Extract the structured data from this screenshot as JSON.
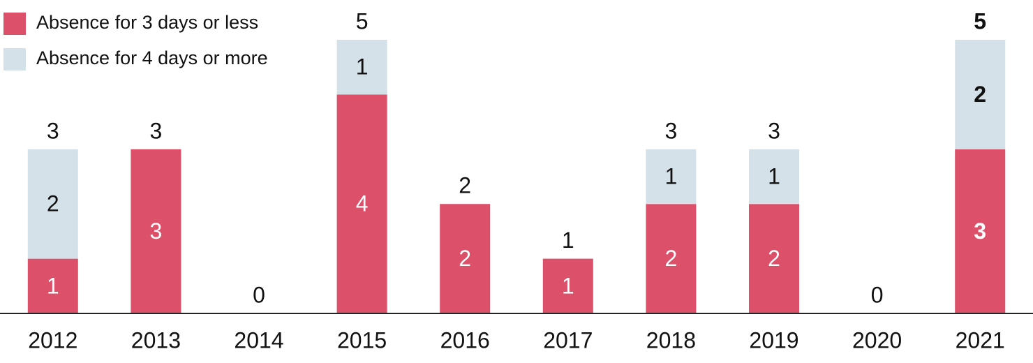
{
  "chart_data": {
    "type": "stacked-bar",
    "categories": [
      "2012",
      "2013",
      "2014",
      "2015",
      "2016",
      "2017",
      "2018",
      "2019",
      "2020",
      "2021"
    ],
    "series": [
      {
        "name": "Absence for 3 days or less",
        "color": "#dc506a",
        "label_color": "#ffffff",
        "values": [
          1,
          3,
          0,
          4,
          2,
          1,
          2,
          2,
          0,
          3
        ]
      },
      {
        "name": "Absence for 4 days or more",
        "color": "#d5e1e8",
        "label_color": "#111111",
        "values": [
          2,
          0,
          0,
          1,
          0,
          0,
          1,
          1,
          0,
          2
        ]
      }
    ],
    "totals": [
      3,
      3,
      0,
      5,
      2,
      1,
      3,
      3,
      0,
      5
    ],
    "bold_index": 9,
    "ylim": [
      0,
      5
    ],
    "legend": "top-left"
  }
}
